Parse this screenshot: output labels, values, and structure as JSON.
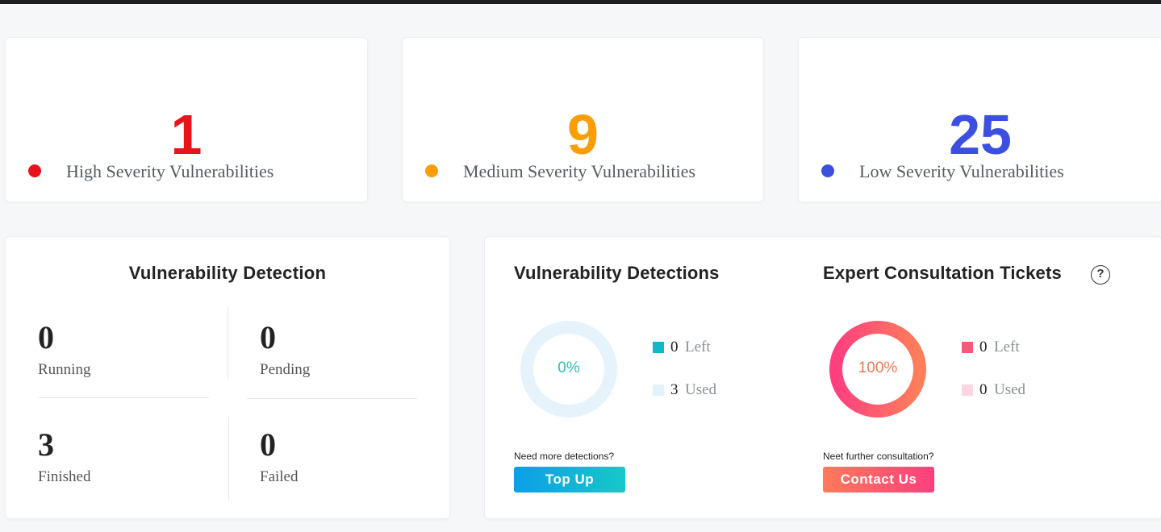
{
  "severity": [
    {
      "count": "1",
      "label": "High Severity Vulnerabilities",
      "color": "#e8141c"
    },
    {
      "count": "9",
      "label": "Medium Severity Vulnerabilities",
      "color": "#f99e09"
    },
    {
      "count": "25",
      "label": "Low Severity Vulnerabilities",
      "color": "#3c4fe0"
    }
  ],
  "detection": {
    "title": "Vulnerability Detection",
    "stats": [
      {
        "value": "0",
        "label": "Running"
      },
      {
        "value": "0",
        "label": "Pending"
      },
      {
        "value": "3",
        "label": "Finished"
      },
      {
        "value": "0",
        "label": "Failed"
      }
    ]
  },
  "detections_quota": {
    "title": "Vulnerability Detections",
    "percent_text": "0%",
    "percent": 0,
    "legend": [
      {
        "value": "0",
        "label": "Left",
        "color": "#10b8c8"
      },
      {
        "value": "3",
        "label": "Used",
        "color": "#e4f2fc"
      }
    ],
    "hint": "Need more detections?",
    "button_label": "Top Up"
  },
  "consultation": {
    "title": "Expert Consultation Tickets",
    "help_icon": "question-circle-icon",
    "help_glyph": "?",
    "percent_text": "100%",
    "percent": 100,
    "legend": [
      {
        "value": "0",
        "label": "Left",
        "color": "#f5587a"
      },
      {
        "value": "0",
        "label": "Used",
        "color": "#fdd5e0"
      }
    ],
    "hint": "Neet further consultation?",
    "button_label": "Contact Us"
  }
}
